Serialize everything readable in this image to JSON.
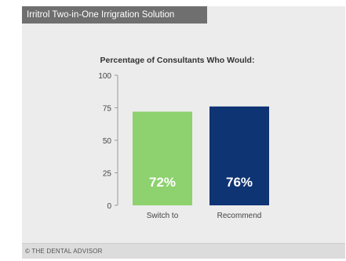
{
  "header": {
    "title": "Irritrol Two-in-One Irrigration Solution"
  },
  "footer": {
    "text": "© THE DENTAL ADVISOR"
  },
  "colors": {
    "switch_bar": "#8ed16f",
    "recommend_bar": "#0f3474",
    "header_bg": "#6f6f6f",
    "card_bg": "#ececec"
  },
  "chart_data": {
    "type": "bar",
    "title": "Percentage of Consultants Who Would:",
    "categories": [
      "Switch to",
      "Recommend"
    ],
    "values": [
      72,
      76
    ],
    "data_labels": [
      "72%",
      "76%"
    ],
    "yticks": [
      "0",
      "25",
      "50",
      "75",
      "100"
    ],
    "ylim": [
      0,
      100
    ],
    "xlabel": "",
    "ylabel": "",
    "grid": false
  }
}
